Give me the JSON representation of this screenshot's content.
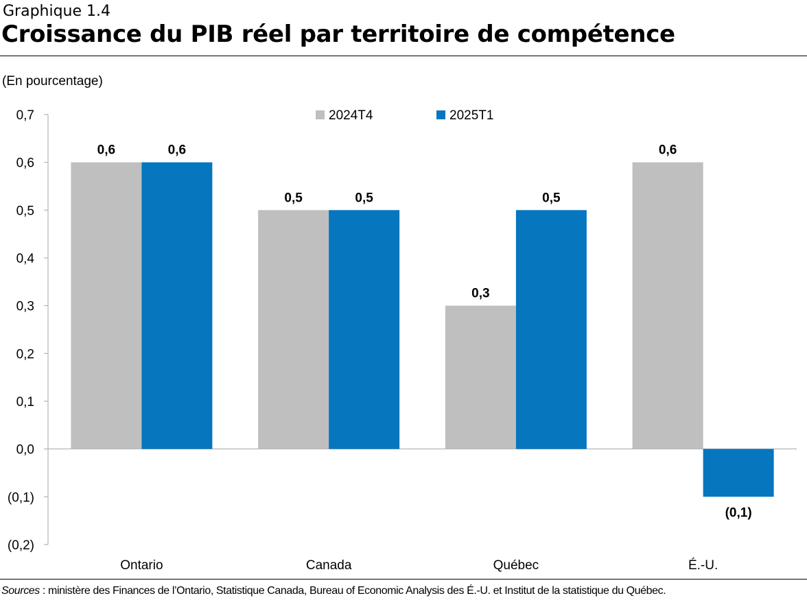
{
  "header": {
    "figure_label": "Graphique 1.4",
    "title": "Croissance du PIB réel par territoire de compétence"
  },
  "chart_data": {
    "type": "bar",
    "unit_label": "(En pourcentage)",
    "categories": [
      "Ontario",
      "Canada",
      "Québec",
      "É.-U."
    ],
    "series": [
      {
        "name": "2024T4",
        "color": "#bfbfbf",
        "values": [
          0.6,
          0.5,
          0.3,
          0.6
        ],
        "labels": [
          "0,6",
          "0,5",
          "0,3",
          "0,6"
        ]
      },
      {
        "name": "2025T1",
        "color": "#0676be",
        "values": [
          0.6,
          0.5,
          0.5,
          -0.1
        ],
        "labels": [
          "0,6",
          "0,5",
          "0,5",
          "(0,1)"
        ]
      }
    ],
    "ylim": [
      -0.2,
      0.7
    ],
    "yticks": [
      0.7,
      0.6,
      0.5,
      0.4,
      0.3,
      0.2,
      0.1,
      0.0,
      -0.1,
      -0.2
    ],
    "ytick_labels": [
      "0,7",
      "0,6",
      "0,5",
      "0,4",
      "0,3",
      "0,2",
      "0,1",
      "0,0",
      "(0,1)",
      "(0,2)"
    ],
    "legend_position": "top-center",
    "grid": false
  },
  "footer": {
    "sources_label": "Sources",
    "sources_text": " : ministère des Finances de l’Ontario, Statistique  Canada, Bureau of Economic Analysis des É.-U.  et Institut  de la statistique  du Québec."
  }
}
